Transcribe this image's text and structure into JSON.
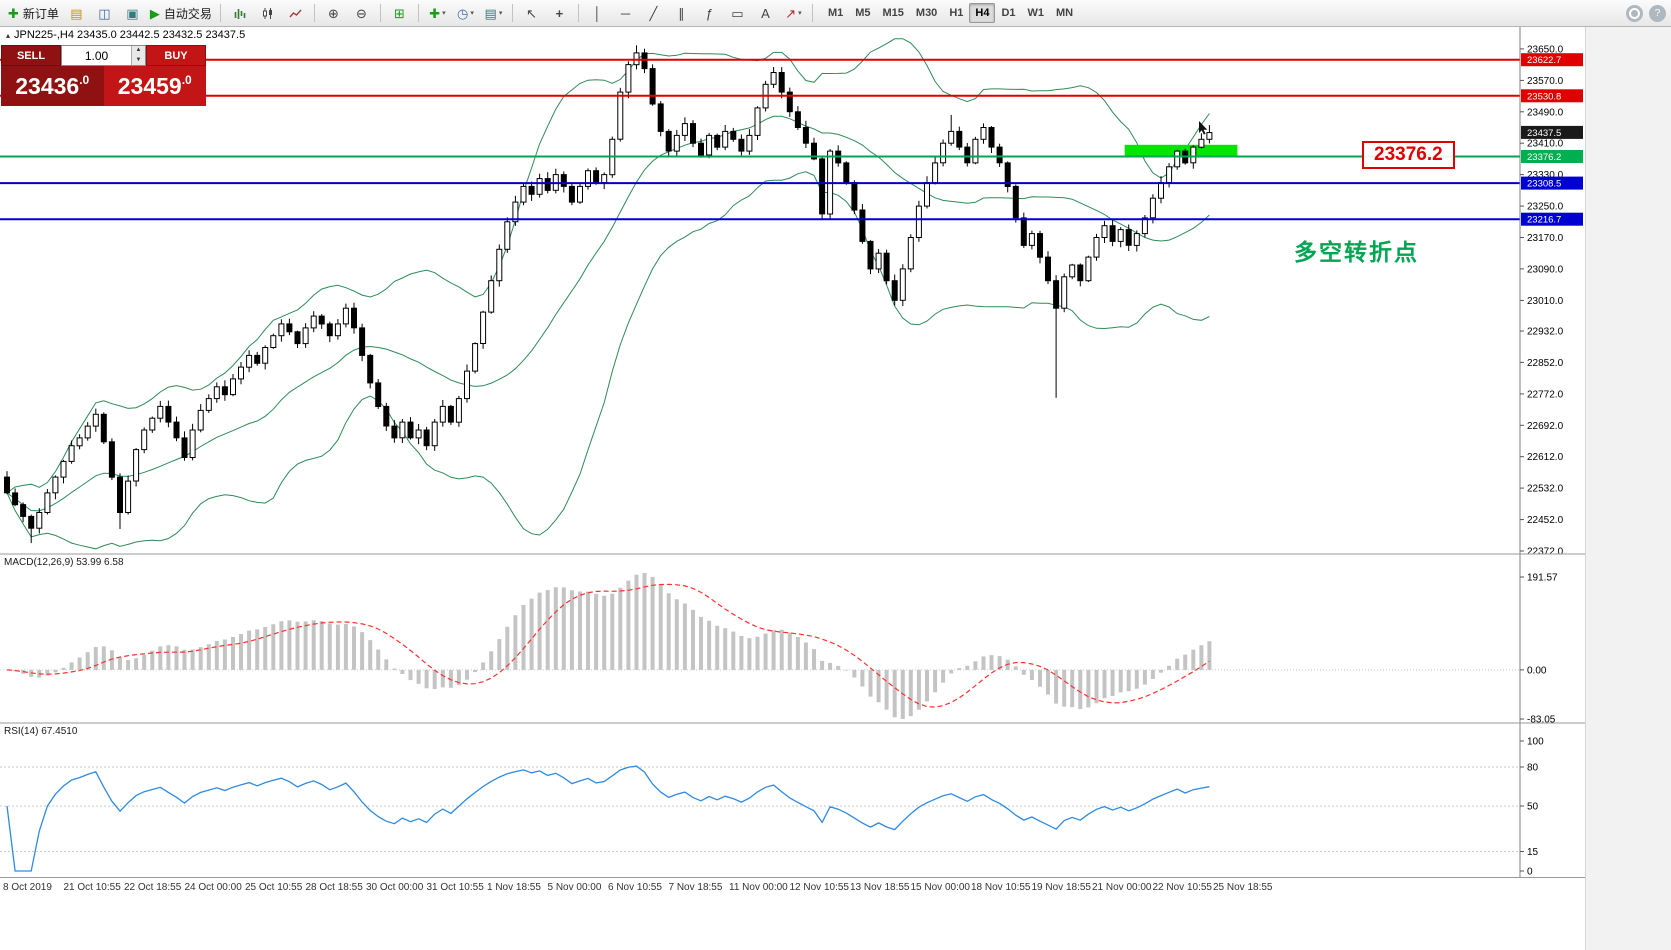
{
  "toolbar": {
    "new_order_label": "新订单",
    "auto_trading_label": "自动交易",
    "timeframes": [
      "M1",
      "M5",
      "M15",
      "M30",
      "H1",
      "H4",
      "D1",
      "W1",
      "MN"
    ],
    "active_timeframe": "H4",
    "icons": [
      "new-order-icon",
      "profiles-icon",
      "data-window-icon",
      "terminal-icon",
      "auto-trading-icon",
      "bar-chart-icon",
      "candlestick-chart-icon",
      "line-chart-icon",
      "zoom-in-icon",
      "zoom-out-icon",
      "tile-windows-icon",
      "indicators-icon",
      "periods-icon",
      "templates-icon",
      "cursor-icon",
      "crosshair-icon",
      "vertical-line-icon",
      "horizontal-line-icon",
      "trendline-icon",
      "channel-icon",
      "fibonacci-icon",
      "shapes-icon",
      "text-icon",
      "arrow-tool-icon",
      "search-icon",
      "help-icon"
    ]
  },
  "symbol_bar": {
    "title": "JPN225-,H4 23435.0 23442.5 23432.5 23437.5"
  },
  "trade_panel": {
    "sell_label": "SELL",
    "buy_label": "BUY",
    "volume": "1.00",
    "sell_price_int": "23436",
    "sell_price_dec": ".0",
    "buy_price_int": "23459",
    "buy_price_dec": ".0"
  },
  "annotations": {
    "price_callout": "23376.2",
    "turning_point": "多空转折点"
  },
  "price_tags": [
    {
      "value": "23622.7",
      "color": "#e00000"
    },
    {
      "value": "23530.8",
      "color": "#e00000"
    },
    {
      "value": "23437.5",
      "color": "#1a1a1a"
    },
    {
      "value": "23376.2",
      "color": "#00b050"
    },
    {
      "value": "23308.5",
      "color": "#0000d0"
    },
    {
      "value": "23216.7",
      "color": "#0000d0"
    }
  ],
  "chart_data": {
    "type": "candlestick+indicators",
    "symbol": "JPN225-",
    "timeframe": "H4",
    "ohlc_current": {
      "open": 23435.0,
      "high": 23442.5,
      "low": 23432.5,
      "close": 23437.5
    },
    "y_ticks": [
      "23650.0",
      "23570.0",
      "23490.0",
      "23410.0",
      "23330.0",
      "23250.0",
      "23170.0",
      "23090.0",
      "23010.0",
      "22932.0",
      "22852.0",
      "22772.0",
      "22692.0",
      "22612.0",
      "22532.0",
      "22452.0",
      "22372.0"
    ],
    "y_range": [
      22372,
      23660
    ],
    "open_first": 22560,
    "closes": [
      22520,
      22490,
      22460,
      22430,
      22470,
      22520,
      22560,
      22600,
      22640,
      22660,
      22690,
      22720,
      22650,
      22560,
      22470,
      22550,
      22630,
      22680,
      22710,
      22740,
      22700,
      22660,
      22610,
      22680,
      22730,
      22760,
      22790,
      22770,
      22810,
      22840,
      22870,
      22850,
      22890,
      22920,
      22950,
      22930,
      22900,
      22940,
      22970,
      22950,
      22920,
      22950,
      22990,
      22940,
      22870,
      22800,
      22740,
      22690,
      22660,
      22700,
      22660,
      22680,
      22640,
      22700,
      22740,
      22700,
      22760,
      22830,
      22900,
      22980,
      23060,
      23140,
      23210,
      23260,
      23300,
      23280,
      23320,
      23290,
      23330,
      23300,
      23260,
      23300,
      23340,
      23310,
      23330,
      23420,
      23540,
      23610,
      23640,
      23600,
      23510,
      23440,
      23390,
      23430,
      23460,
      23410,
      23380,
      23430,
      23400,
      23440,
      23420,
      23390,
      23430,
      23500,
      23560,
      23590,
      23540,
      23490,
      23450,
      23410,
      23370,
      23230,
      23390,
      23360,
      23310,
      23240,
      23160,
      23090,
      23130,
      23060,
      23010,
      23090,
      23170,
      23250,
      23310,
      23360,
      23410,
      23440,
      23400,
      23360,
      23420,
      23450,
      23400,
      23360,
      23300,
      23220,
      23150,
      23180,
      23120,
      23060,
      22990,
      23070,
      23100,
      23060,
      23120,
      23170,
      23200,
      23160,
      23190,
      23150,
      23180,
      23220,
      23270,
      23310,
      23350,
      23390,
      23360,
      23400,
      23420,
      23437
    ],
    "special_wicks": {
      "3": {
        "low": 22392
      },
      "14": {
        "low": 22428
      },
      "78": {
        "high": 23659
      },
      "95": {
        "high": 23604
      },
      "101": {
        "low": 23214
      },
      "117": {
        "high": 23482
      },
      "130": {
        "low": 22762
      },
      "149": {
        "high": 23456
      }
    },
    "levels": [
      {
        "price": 23622.7,
        "color": "#dd0000",
        "width": 2
      },
      {
        "price": 23530.8,
        "color": "#dd0000",
        "width": 2
      },
      {
        "price": 23376.2,
        "color": "#00a651",
        "width": 2
      },
      {
        "price": 23308.5,
        "color": "#0000cc",
        "width": 2
      },
      {
        "price": 23216.7,
        "color": "#0000cc",
        "width": 2
      }
    ],
    "green_rect": {
      "price_top": 23406,
      "price_bottom": 23378,
      "color": "#00e600"
    },
    "bollinger": {
      "period": 20,
      "deviation": 2,
      "color": "#2e8b57"
    },
    "macd": {
      "label": "MACD(12,26,9) 53.99 6.58",
      "fast": 12,
      "slow": 26,
      "signal": 9,
      "ticks": [
        "191.57",
        "0.00",
        "-83.05"
      ],
      "histogram_color": "#c4c4c4",
      "signal_color": "#ff3030"
    },
    "rsi": {
      "label": "RSI(14) 67.4510",
      "period": 14,
      "ticks": [
        "100",
        "80",
        "50",
        "15",
        "0"
      ],
      "levels": [
        80,
        50,
        15
      ],
      "color": "#2f8ae0"
    },
    "x_labels": [
      "8 Oct 2019",
      "21 Oct 10:55",
      "22 Oct 18:55",
      "24 Oct 00:00",
      "25 Oct 10:55",
      "28 Oct 18:55",
      "30 Oct 00:00",
      "31 Oct 10:55",
      "1 Nov 18:55",
      "5 Nov 00:00",
      "6 Nov 10:55",
      "7 Nov 18:55",
      "11 Nov 00:00",
      "12 Nov 10:55",
      "13 Nov 18:55",
      "15 Nov 00:00",
      "18 Nov 10:55",
      "19 Nov 18:55",
      "21 Nov 00:00",
      "22 Nov 10:55",
      "25 Nov 18:55"
    ]
  }
}
